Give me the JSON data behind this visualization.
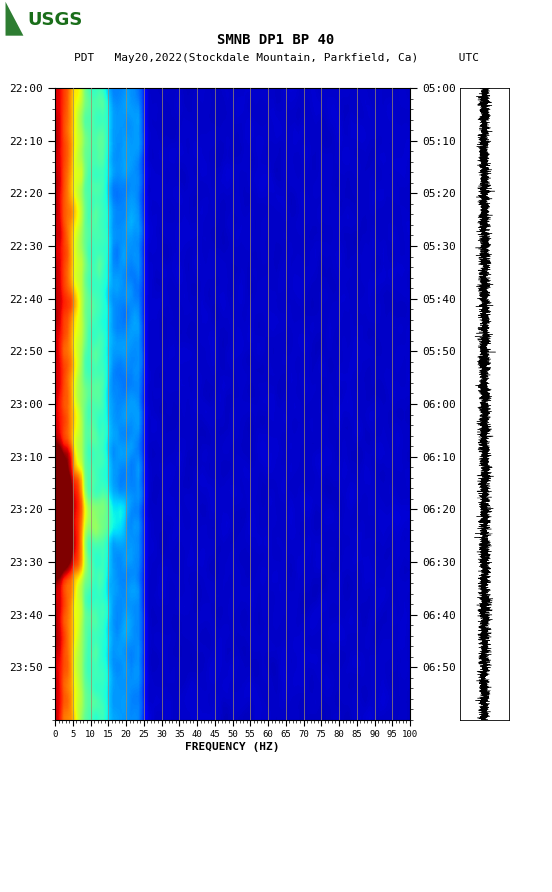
{
  "title_line1": "SMNB DP1 BP 40",
  "title_line2_left": "PDT   May20,2022(Stockdale Mountain, Parkfield, Ca)",
  "title_line2_right": "UTC",
  "xlabel": "FREQUENCY (HZ)",
  "freq_min": 0,
  "freq_max": 100,
  "freq_ticks": [
    0,
    5,
    10,
    15,
    20,
    25,
    30,
    35,
    40,
    45,
    50,
    55,
    60,
    65,
    70,
    75,
    80,
    85,
    90,
    95,
    100
  ],
  "time_ticks_left": [
    "22:00",
    "22:10",
    "22:20",
    "22:30",
    "22:40",
    "22:50",
    "23:00",
    "23:10",
    "23:20",
    "23:30",
    "23:40",
    "23:50"
  ],
  "time_ticks_right": [
    "05:00",
    "05:10",
    "05:20",
    "05:30",
    "05:40",
    "05:50",
    "06:00",
    "06:10",
    "06:20",
    "06:30",
    "06:40",
    "06:50"
  ],
  "n_time": 120,
  "n_freq": 100,
  "background_color": "#ffffff",
  "spectrogram_bg": "#000080",
  "vertical_line_color": "#8B7355",
  "usgs_text_color": "#1a6e1a"
}
